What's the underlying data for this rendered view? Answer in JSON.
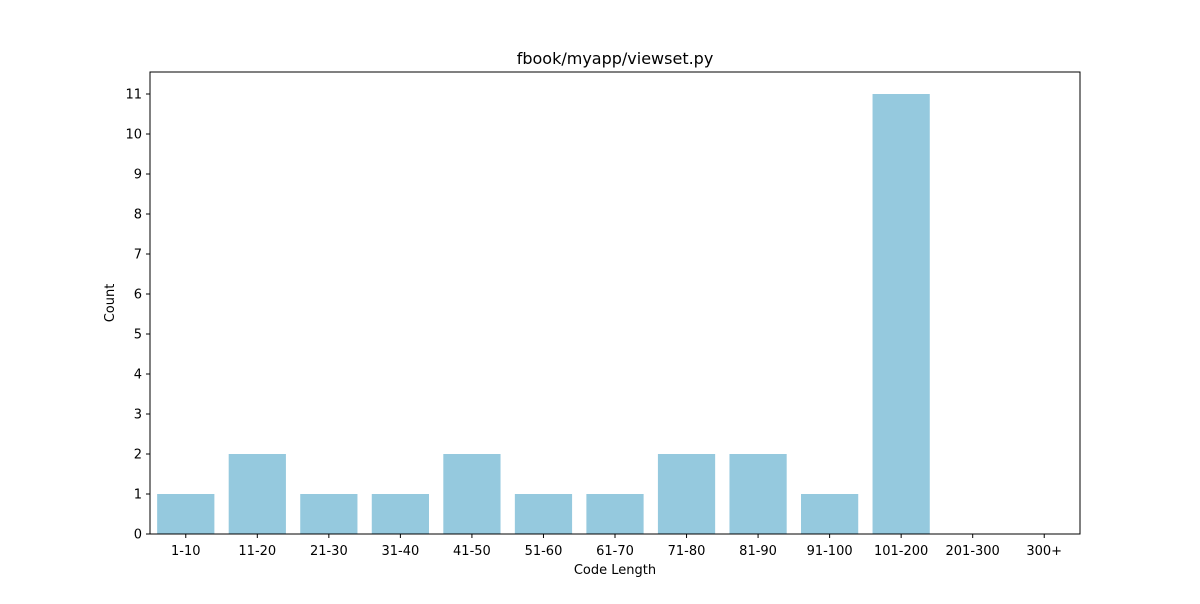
{
  "chart_data": {
    "type": "bar",
    "title": "fbook/myapp/viewset.py",
    "xlabel": "Code Length",
    "ylabel": "Count",
    "categories": [
      "1-10",
      "11-20",
      "21-30",
      "31-40",
      "41-50",
      "51-60",
      "61-70",
      "71-80",
      "81-90",
      "91-100",
      "101-200",
      "201-300",
      "300+"
    ],
    "values": [
      1,
      2,
      1,
      1,
      2,
      1,
      1,
      2,
      2,
      1,
      11,
      0,
      0
    ],
    "y_ticks": [
      0,
      1,
      2,
      3,
      4,
      5,
      6,
      7,
      8,
      9,
      10,
      11
    ],
    "ylim": [
      0,
      11.55
    ],
    "grid": false,
    "legend": "none",
    "bar_color": "#95c9de",
    "axis_color": "#000000"
  }
}
